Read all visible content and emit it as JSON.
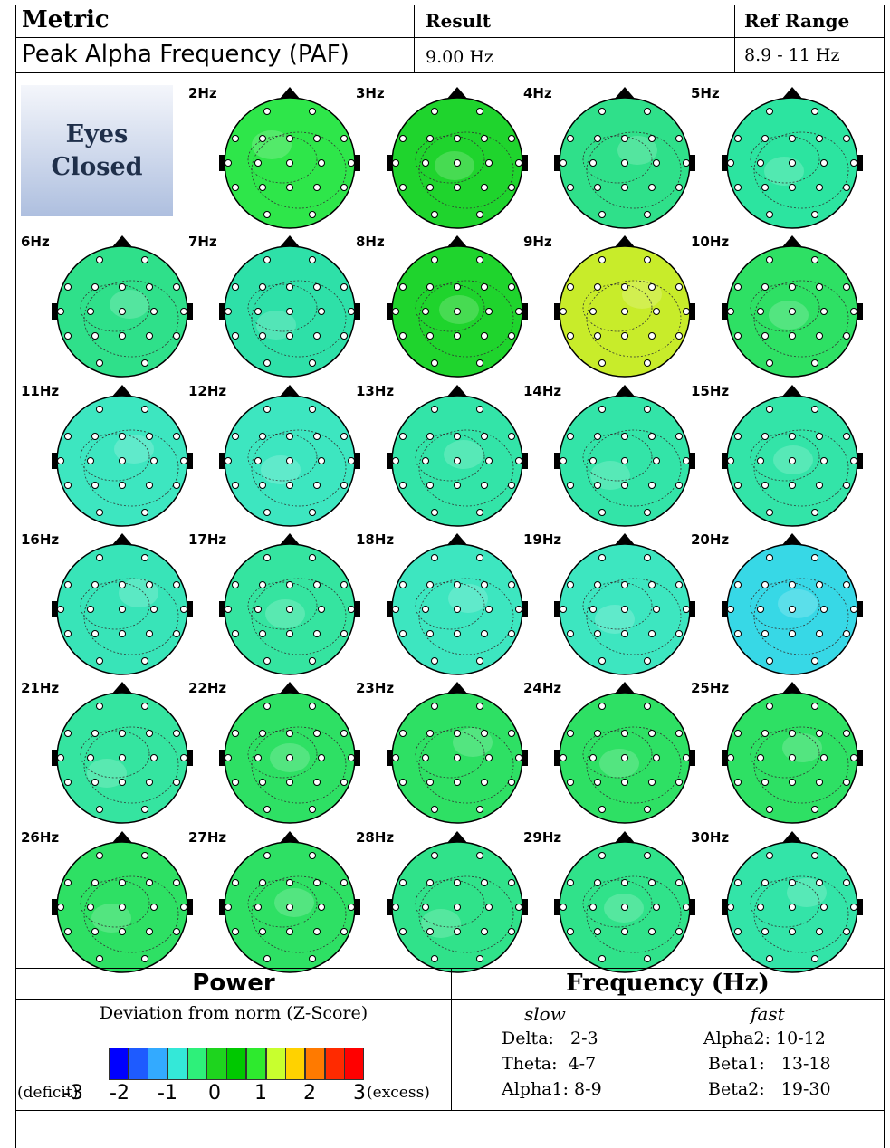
{
  "table": {
    "col_metric": "Metric",
    "col_result": "Result",
    "col_ref": "Ref Range",
    "row_metric": "Peak Alpha Frequency (PAF)",
    "row_result": "9.00 Hz",
    "row_ref": "8.9 - 11 Hz"
  },
  "condition": {
    "line1": "Eyes",
    "line2": "Closed"
  },
  "maps": [
    {
      "label": "2Hz",
      "fill": "#2ee64a"
    },
    {
      "label": "3Hz",
      "fill": "#1fd42d"
    },
    {
      "label": "4Hz",
      "fill": "#2fe08a"
    },
    {
      "label": "5Hz",
      "fill": "#2ce4a0"
    },
    {
      "label": "6Hz",
      "fill": "#2fe08a"
    },
    {
      "label": "7Hz",
      "fill": "#2ee0a8"
    },
    {
      "label": "8Hz",
      "fill": "#1fd42d"
    },
    {
      "label": "9Hz",
      "fill": "#c8ec2a"
    },
    {
      "label": "10Hz",
      "fill": "#2ee064"
    },
    {
      "label": "11Hz",
      "fill": "#3de6c0"
    },
    {
      "label": "12Hz",
      "fill": "#3de6c0"
    },
    {
      "label": "13Hz",
      "fill": "#33e4a8"
    },
    {
      "label": "14Hz",
      "fill": "#33e4a8"
    },
    {
      "label": "15Hz",
      "fill": "#33e4a8"
    },
    {
      "label": "16Hz",
      "fill": "#38e4b8"
    },
    {
      "label": "17Hz",
      "fill": "#35e4a0"
    },
    {
      "label": "18Hz",
      "fill": "#3de6c0"
    },
    {
      "label": "19Hz",
      "fill": "#3de6c0"
    },
    {
      "label": "20Hz",
      "fill": "#37d8e6"
    },
    {
      "label": "21Hz",
      "fill": "#35e4a0"
    },
    {
      "label": "22Hz",
      "fill": "#2ee064"
    },
    {
      "label": "23Hz",
      "fill": "#2ee064"
    },
    {
      "label": "24Hz",
      "fill": "#2ee064"
    },
    {
      "label": "25Hz",
      "fill": "#2ee064"
    },
    {
      "label": "26Hz",
      "fill": "#2ee064"
    },
    {
      "label": "27Hz",
      "fill": "#2ee064"
    },
    {
      "label": "28Hz",
      "fill": "#30e28a"
    },
    {
      "label": "29Hz",
      "fill": "#30e28a"
    },
    {
      "label": "30Hz",
      "fill": "#33e4a8"
    }
  ],
  "legend": {
    "power_title": "Power",
    "power_subtitle": "Deviation from norm (Z-Score)",
    "deficit": "(deficit)",
    "excess": "(excess)",
    "scale_numbers": [
      "-3",
      "-2",
      "-1",
      "0",
      "1",
      "2",
      "3"
    ],
    "scale_colors": [
      "#0000ff",
      "#1e5bff",
      "#33aaff",
      "#34e8d8",
      "#2ef07a",
      "#1ed41e",
      "#00c800",
      "#2eea2e",
      "#c8ff2e",
      "#ffd200",
      "#ff7a00",
      "#ff2a00",
      "#ff0000"
    ],
    "freq_title": "Frequency (Hz)",
    "slow_label": "slow",
    "fast_label": "fast",
    "slow_bands": [
      "Delta:   2-3",
      "Theta:  4-7",
      "Alpha1: 8-9"
    ],
    "fast_bands": [
      "Alpha2: 10-12",
      "Beta1:   13-18",
      "Beta2:   19-30"
    ]
  }
}
